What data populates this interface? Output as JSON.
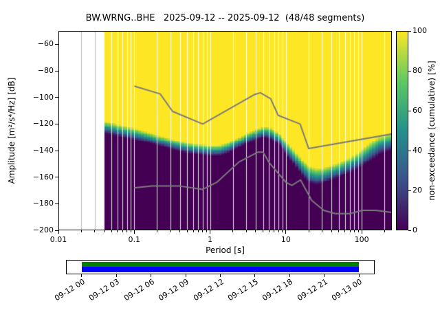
{
  "title": "BW.WRNG..BHE   2025-09-12 -- 2025-09-12  (48/48 segments)",
  "axes": {
    "xlabel": "Period [s]",
    "ylabel": "Amplitude [m²/s⁴/Hz] [dB]",
    "x_ticks": [
      0.01,
      0.1,
      1,
      10,
      100
    ],
    "x_tick_labels": [
      "0.01",
      "0.1",
      "1",
      "10",
      "100"
    ],
    "y_ticks": [
      -60,
      -80,
      -100,
      -120,
      -140,
      -160,
      -180,
      -200
    ],
    "y_tick_labels": [
      "−60",
      "−80",
      "−100",
      "−120",
      "−140",
      "−160",
      "−180",
      "−200"
    ]
  },
  "colorbar": {
    "label": "non-exceedance (cumulative) [%]",
    "ticks": [
      0,
      20,
      40,
      60,
      80,
      100
    ],
    "tick_labels": [
      "0",
      "20",
      "40",
      "60",
      "80",
      "100"
    ],
    "colormap": "viridis",
    "colors": [
      "#440154",
      "#3b528b",
      "#21918c",
      "#5ec962",
      "#fde725"
    ]
  },
  "chart_data": {
    "type": "heatmap",
    "title": "BW.WRNG..BHE   2025-09-12 -- 2025-09-12  (48/48 segments)",
    "xlabel": "Period [s]",
    "ylabel": "Amplitude [m²/s⁴/Hz] [dB]",
    "xscale": "log",
    "xlim": [
      0.01,
      250
    ],
    "ylim": [
      -200,
      -50
    ],
    "colorbar_label": "non-exceedance (cumulative) [%]",
    "colorbar_range": [
      0,
      100
    ],
    "segments_used": 48,
    "segments_total": 48,
    "period_min": 0.04,
    "distribution": {
      "description": "Cumulative PPSD: non-exceedance is 100% (yellow) above upper_edge_db, 0% (dark purple) below lower_edge_db, graded in between",
      "periods": [
        0.04,
        0.05,
        0.07,
        0.1,
        0.15,
        0.2,
        0.3,
        0.5,
        0.7,
        1.0,
        1.3,
        1.7,
        2.2,
        3.0,
        4.0,
        5.0,
        6.0,
        7.0,
        8.5,
        10,
        13,
        16,
        20,
        25,
        30,
        40,
        55,
        75,
        100,
        130,
        170,
        250
      ],
      "upper_edge_db": [
        -118,
        -119,
        -121,
        -123,
        -126,
        -128,
        -131,
        -134,
        -135,
        -136,
        -136,
        -134,
        -131,
        -127,
        -124,
        -122,
        -122,
        -124,
        -128,
        -133,
        -140,
        -146,
        -151,
        -153,
        -153,
        -151,
        -148,
        -144,
        -139,
        -134,
        -129,
        -126
      ],
      "lower_edge_db": [
        -127,
        -128,
        -130,
        -132,
        -134,
        -136,
        -139,
        -142,
        -143,
        -144,
        -144,
        -142,
        -139,
        -135,
        -132,
        -130,
        -131,
        -133,
        -137,
        -143,
        -151,
        -158,
        -164,
        -166,
        -165,
        -162,
        -159,
        -156,
        -152,
        -148,
        -143,
        -140
      ]
    },
    "noise_models": {
      "nhnm": {
        "name": "Peterson New High Noise Model",
        "periods": [
          0.1,
          0.22,
          0.32,
          0.8,
          3.8,
          4.6,
          6.3,
          7.9,
          15.4,
          20.0,
          354.8
        ],
        "db": [
          -91.5,
          -97.4,
          -110.5,
          -120.0,
          -98.0,
          -96.5,
          -101.0,
          -113.5,
          -120.0,
          -138.5,
          -126.0
        ]
      },
      "nlnm": {
        "name": "Peterson New Low Noise Model",
        "periods": [
          0.1,
          0.17,
          0.4,
          0.8,
          1.24,
          2.4,
          4.3,
          5.0,
          6.0,
          10.0,
          12.0,
          15.6,
          21.9,
          31.6,
          45.0,
          70.0,
          101.0,
          154.0,
          328.0
        ],
        "db": [
          -168.0,
          -166.7,
          -166.7,
          -169.2,
          -163.7,
          -148.6,
          -141.1,
          -141.1,
          -149.0,
          -163.8,
          -166.2,
          -162.1,
          -177.5,
          -185.0,
          -187.5,
          -187.5,
          -185.0,
          -185.0,
          -187.5
        ]
      },
      "line_color": "#7b7b7b"
    }
  },
  "timeline": {
    "tick_labels": [
      "09-12 00",
      "09-12 03",
      "09-12 06",
      "09-12 09",
      "09-12 12",
      "09-12 15",
      "09-12 18",
      "09-12 21",
      "09-13 00"
    ],
    "coverage_frac": [
      0.049,
      0.951
    ],
    "coverage_color_top": "#008000",
    "coverage_color_bottom": "#0000ff"
  }
}
